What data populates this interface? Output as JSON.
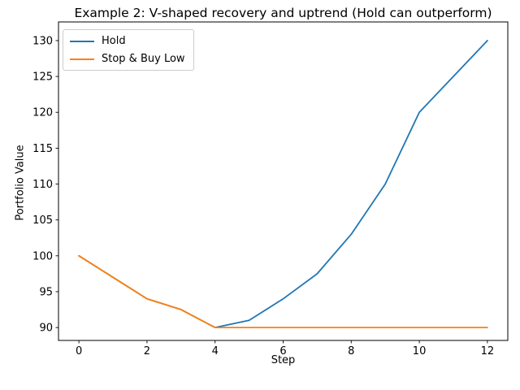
{
  "chart_data": {
    "type": "line",
    "title": "Example 2: V-shaped recovery and uptrend (Hold can outperform)",
    "xlabel": "Step",
    "ylabel": "Portfolio Value",
    "x": [
      0,
      1,
      2,
      3,
      4,
      5,
      6,
      7,
      8,
      9,
      10,
      11,
      12
    ],
    "series": [
      {
        "name": "Hold",
        "color": "#1f77b4",
        "values": [
          100,
          97,
          94,
          92.5,
          90,
          91,
          94,
          97.5,
          103,
          110,
          120,
          125,
          130
        ]
      },
      {
        "name": "Stop & Buy Low",
        "color": "#ff7f0e",
        "values": [
          100,
          97,
          94,
          92.5,
          90,
          90,
          90,
          90,
          90,
          90,
          90,
          90,
          90
        ]
      }
    ],
    "x_ticks": [
      0,
      2,
      4,
      6,
      8,
      10,
      12
    ],
    "y_ticks": [
      90,
      95,
      100,
      105,
      110,
      115,
      120,
      125,
      130
    ],
    "xlim": [
      -0.6,
      12.6
    ],
    "ylim": [
      88.2,
      132.6
    ],
    "legend_position": "upper left",
    "grid": false,
    "background_color": "#ffffff",
    "text_color": "#000000",
    "axis_color": "#000000"
  }
}
